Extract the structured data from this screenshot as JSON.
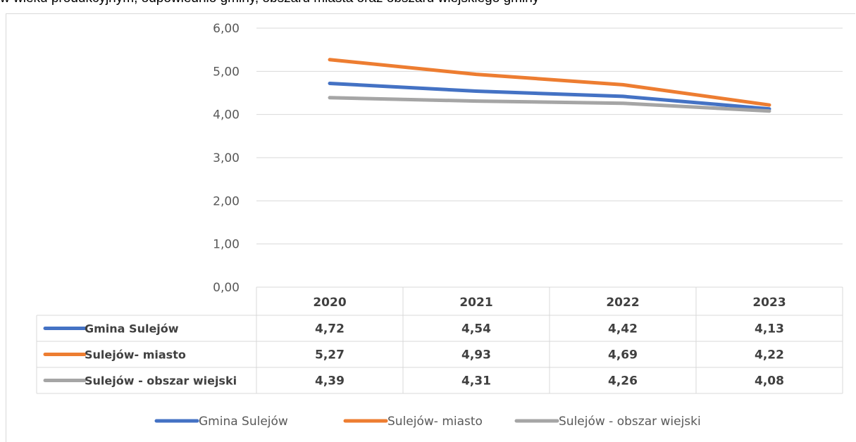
{
  "caption": "w wieku produkcyjnym, odpowiednio gminy, obszaru miasta oraz obszaru wiejskiego gminy",
  "chart_data": {
    "type": "line",
    "categories": [
      "2020",
      "2021",
      "2022",
      "2023"
    ],
    "ylim": [
      0,
      6
    ],
    "yticks": [
      "0,00",
      "1,00",
      "2,00",
      "3,00",
      "4,00",
      "5,00",
      "6,00"
    ],
    "grid": true,
    "legend": "bottom",
    "series": [
      {
        "name": "Gmina Sulejów",
        "color": "#4472C4",
        "values": [
          4.72,
          4.54,
          4.42,
          4.13
        ],
        "labels": [
          "4,72",
          "4,54",
          "4,42",
          "4,13"
        ]
      },
      {
        "name": "Sulejów- miasto",
        "color": "#ED7D31",
        "values": [
          5.27,
          4.93,
          4.69,
          4.22
        ],
        "labels": [
          "5,27",
          "4,93",
          "4,69",
          "4,22"
        ]
      },
      {
        "name": "Sulejów - obszar wiejski",
        "color": "#A5A5A5",
        "values": [
          4.39,
          4.31,
          4.26,
          4.08
        ],
        "labels": [
          "4,39",
          "4,31",
          "4,26",
          "4,08"
        ]
      }
    ]
  }
}
